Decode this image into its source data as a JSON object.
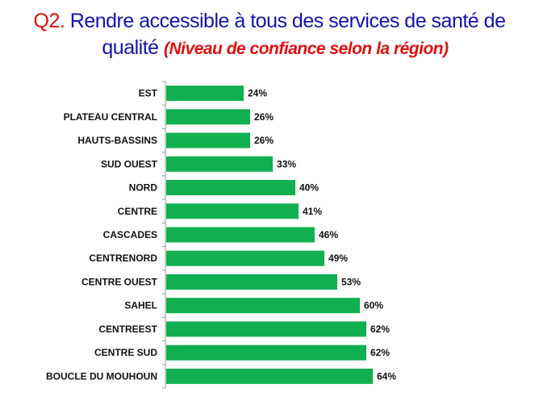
{
  "header": {
    "q": "Q2.",
    "main1": " Rendre accessible à tous des services de santé de",
    "main2": "qualité",
    "sub": "(Niveau de confiance selon la région)"
  },
  "colors": {
    "bar": "#10b050",
    "axis": "#999999"
  },
  "chart_data": {
    "type": "bar",
    "orientation": "horizontal",
    "categories": [
      "EST",
      "PLATEAU CENTRAL",
      "HAUTS-BASSINS",
      "SUD OUEST",
      "NORD",
      "CENTRE",
      "CASCADES",
      "CENTRENORD",
      "CENTRE OUEST",
      "SAHEL",
      "CENTREEST",
      "CENTRE SUD",
      "BOUCLE DU MOUHOUN"
    ],
    "values": [
      24,
      26,
      26,
      33,
      40,
      41,
      46,
      49,
      53,
      60,
      62,
      62,
      64
    ],
    "labels": [
      "24%",
      "26%",
      "26%",
      "33%",
      "40%",
      "41%",
      "46%",
      "49%",
      "53%",
      "60%",
      "62%",
      "62%",
      "64%"
    ],
    "value_unit": "%",
    "xlim": [
      0,
      100
    ],
    "grid": false,
    "legend": "none"
  }
}
